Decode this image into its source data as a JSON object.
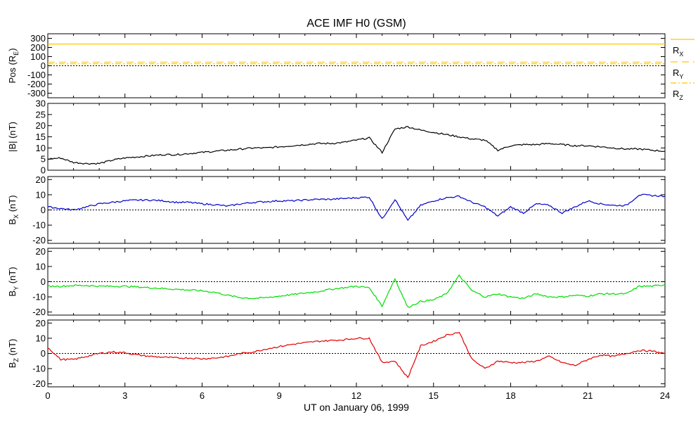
{
  "chart_data": {
    "type": "line",
    "title": "ACE IMF H0 (GSM)",
    "xlabel": "UT on January 06, 1999",
    "xlim": [
      0,
      24
    ],
    "xticks": [
      "0",
      "3",
      "6",
      "9",
      "12",
      "15",
      "18",
      "21",
      "24"
    ],
    "x": [
      0,
      0.5,
      1,
      1.5,
      2,
      2.5,
      3,
      3.5,
      4,
      4.5,
      5,
      5.5,
      6,
      6.5,
      7,
      7.5,
      8,
      8.5,
      9,
      9.5,
      10,
      10.5,
      11,
      11.5,
      12,
      12.5,
      13,
      13.5,
      14,
      14.5,
      15,
      15.5,
      16,
      16.5,
      17,
      17.5,
      18,
      18.5,
      19,
      19.5,
      20,
      20.5,
      21,
      21.5,
      22,
      22.5,
      23,
      23.5,
      24
    ],
    "panels": [
      {
        "ylabel_main": "Pos (R",
        "ylabel_sub": "E",
        "ylabel_tail": ")",
        "ylim": [
          -350,
          350
        ],
        "yticks": [
          "300",
          "200",
          "100",
          "0",
          "-100",
          "-200",
          "-300"
        ],
        "zero_line": true,
        "series": [
          {
            "name": "R",
            "sub": "X",
            "color": "#ffc800",
            "dash": "none",
            "values": [
              238,
              238,
              238,
              238,
              238,
              238,
              238,
              238,
              238,
              238,
              238,
              238,
              238,
              238,
              238,
              238,
              238,
              238,
              238,
              238,
              238,
              238,
              238,
              238,
              238,
              238,
              238,
              238,
              238,
              238,
              238,
              238,
              238,
              238,
              238,
              238,
              238,
              238,
              238,
              238,
              238,
              238,
              238,
              238,
              238,
              238,
              238,
              238,
              238
            ]
          },
          {
            "name": "R",
            "sub": "Y",
            "color": "#ffc800",
            "dash": "10 6",
            "values": [
              40,
              40,
              40,
              40,
              40,
              40,
              40,
              40,
              40,
              40,
              40,
              40,
              40,
              40,
              40,
              40,
              40,
              40,
              40,
              40,
              40,
              40,
              40,
              40,
              40,
              40,
              40,
              40,
              40,
              40,
              40,
              40,
              40,
              40,
              40,
              40,
              40,
              40,
              40,
              40,
              40,
              40,
              40,
              40,
              40,
              40,
              40,
              40,
              40
            ]
          },
          {
            "name": "R",
            "sub": "Z",
            "color": "#ffc800",
            "dash": "8 3 2 3",
            "values": [
              22,
              22,
              22,
              22,
              22,
              22,
              22,
              22,
              22,
              22,
              22,
              22,
              22,
              22,
              22,
              22,
              22,
              22,
              22,
              22,
              22,
              22,
              22,
              22,
              22,
              22,
              22,
              22,
              22,
              22,
              22,
              22,
              22,
              22,
              22,
              22,
              22,
              22,
              22,
              22,
              22,
              22,
              22,
              22,
              22,
              22,
              22,
              22,
              22
            ]
          }
        ]
      },
      {
        "ylabel_main": "|B| (nT)",
        "ylabel_sub": "",
        "ylabel_tail": "",
        "ylim": [
          0,
          30
        ],
        "yticks": [
          "30",
          "25",
          "20",
          "15",
          "10",
          "5",
          "0"
        ],
        "zero_line": false,
        "series": [
          {
            "color": "#000000",
            "dash": "none",
            "values": [
              5,
              5.5,
              3.5,
              3,
              3,
              4.5,
              5.5,
              6,
              6.5,
              7,
              7,
              7.5,
              8,
              8.5,
              9,
              9.5,
              10,
              10,
              10.5,
              11,
              11.5,
              12,
              12,
              12.5,
              13.5,
              14.5,
              8,
              18.5,
              19.5,
              18,
              17,
              16,
              15,
              14,
              13.5,
              9,
              11,
              11.5,
              11.5,
              12,
              11.5,
              11,
              11,
              10.5,
              10,
              9.5,
              9.5,
              9,
              8.5
            ]
          }
        ]
      },
      {
        "ylabel_main": "B",
        "ylabel_sub": "X",
        "ylabel_tail": " (nT)",
        "ylim": [
          -22,
          22
        ],
        "yticks": [
          "20",
          "10",
          "0",
          "-10",
          "-20"
        ],
        "zero_line": true,
        "series": [
          {
            "color": "#0000cc",
            "dash": "none",
            "values": [
              2,
              1,
              0,
              2,
              4,
              5,
              6,
              6.5,
              6.5,
              6,
              5,
              5,
              4,
              3.5,
              2.5,
              4,
              5,
              5.5,
              6,
              6,
              6.5,
              7,
              7,
              7.5,
              8,
              8.5,
              -6,
              7,
              -7,
              3,
              6,
              8,
              9,
              5,
              2,
              -4,
              2,
              -2,
              4,
              3,
              -2,
              2,
              6,
              4,
              3,
              3,
              10,
              9.5,
              9
            ]
          }
        ]
      },
      {
        "ylabel_main": "B",
        "ylabel_sub": "Y",
        "ylabel_tail": " (nT)",
        "ylim": [
          -22,
          22
        ],
        "yticks": [
          "20",
          "10",
          "0",
          "-10",
          "-20"
        ],
        "zero_line": true,
        "series": [
          {
            "color": "#00dd00",
            "dash": "none",
            "values": [
              -3,
              -3,
              -2.5,
              -2.5,
              -3,
              -3,
              -3,
              -3.5,
              -4,
              -4.5,
              -5,
              -5.5,
              -6,
              -7,
              -9,
              -10.5,
              -11,
              -10.5,
              -9.5,
              -8.5,
              -7.5,
              -6.5,
              -5,
              -4,
              -3,
              -4,
              -16,
              2,
              -17,
              -13,
              -12,
              -8,
              4,
              -6,
              -10,
              -8,
              -10,
              -11,
              -8,
              -10,
              -10,
              -9,
              -9.5,
              -8,
              -8,
              -8,
              -3,
              -3,
              -2
            ]
          }
        ]
      },
      {
        "ylabel_main": "B",
        "ylabel_sub": "Z",
        "ylabel_tail": " (nT)",
        "ylim": [
          -22,
          22
        ],
        "yticks": [
          "20",
          "10",
          "0",
          "-10",
          "-20"
        ],
        "zero_line": true,
        "series": [
          {
            "color": "#e00000",
            "dash": "none",
            "values": [
              4,
              -4,
              -4,
              -2,
              0,
              1,
              0.5,
              -1,
              -2,
              -2.5,
              -3,
              -3,
              -3.5,
              -3,
              -2,
              0,
              1,
              3,
              4.5,
              6,
              7,
              8,
              8.5,
              9,
              10,
              10,
              -6,
              -5,
              -16,
              5,
              8,
              12,
              14,
              -4,
              -10,
              -5,
              -6,
              -6,
              -5,
              -2,
              -6,
              -8,
              -4,
              -1,
              -2,
              0,
              2,
              1.5,
              0
            ]
          }
        ]
      }
    ]
  }
}
